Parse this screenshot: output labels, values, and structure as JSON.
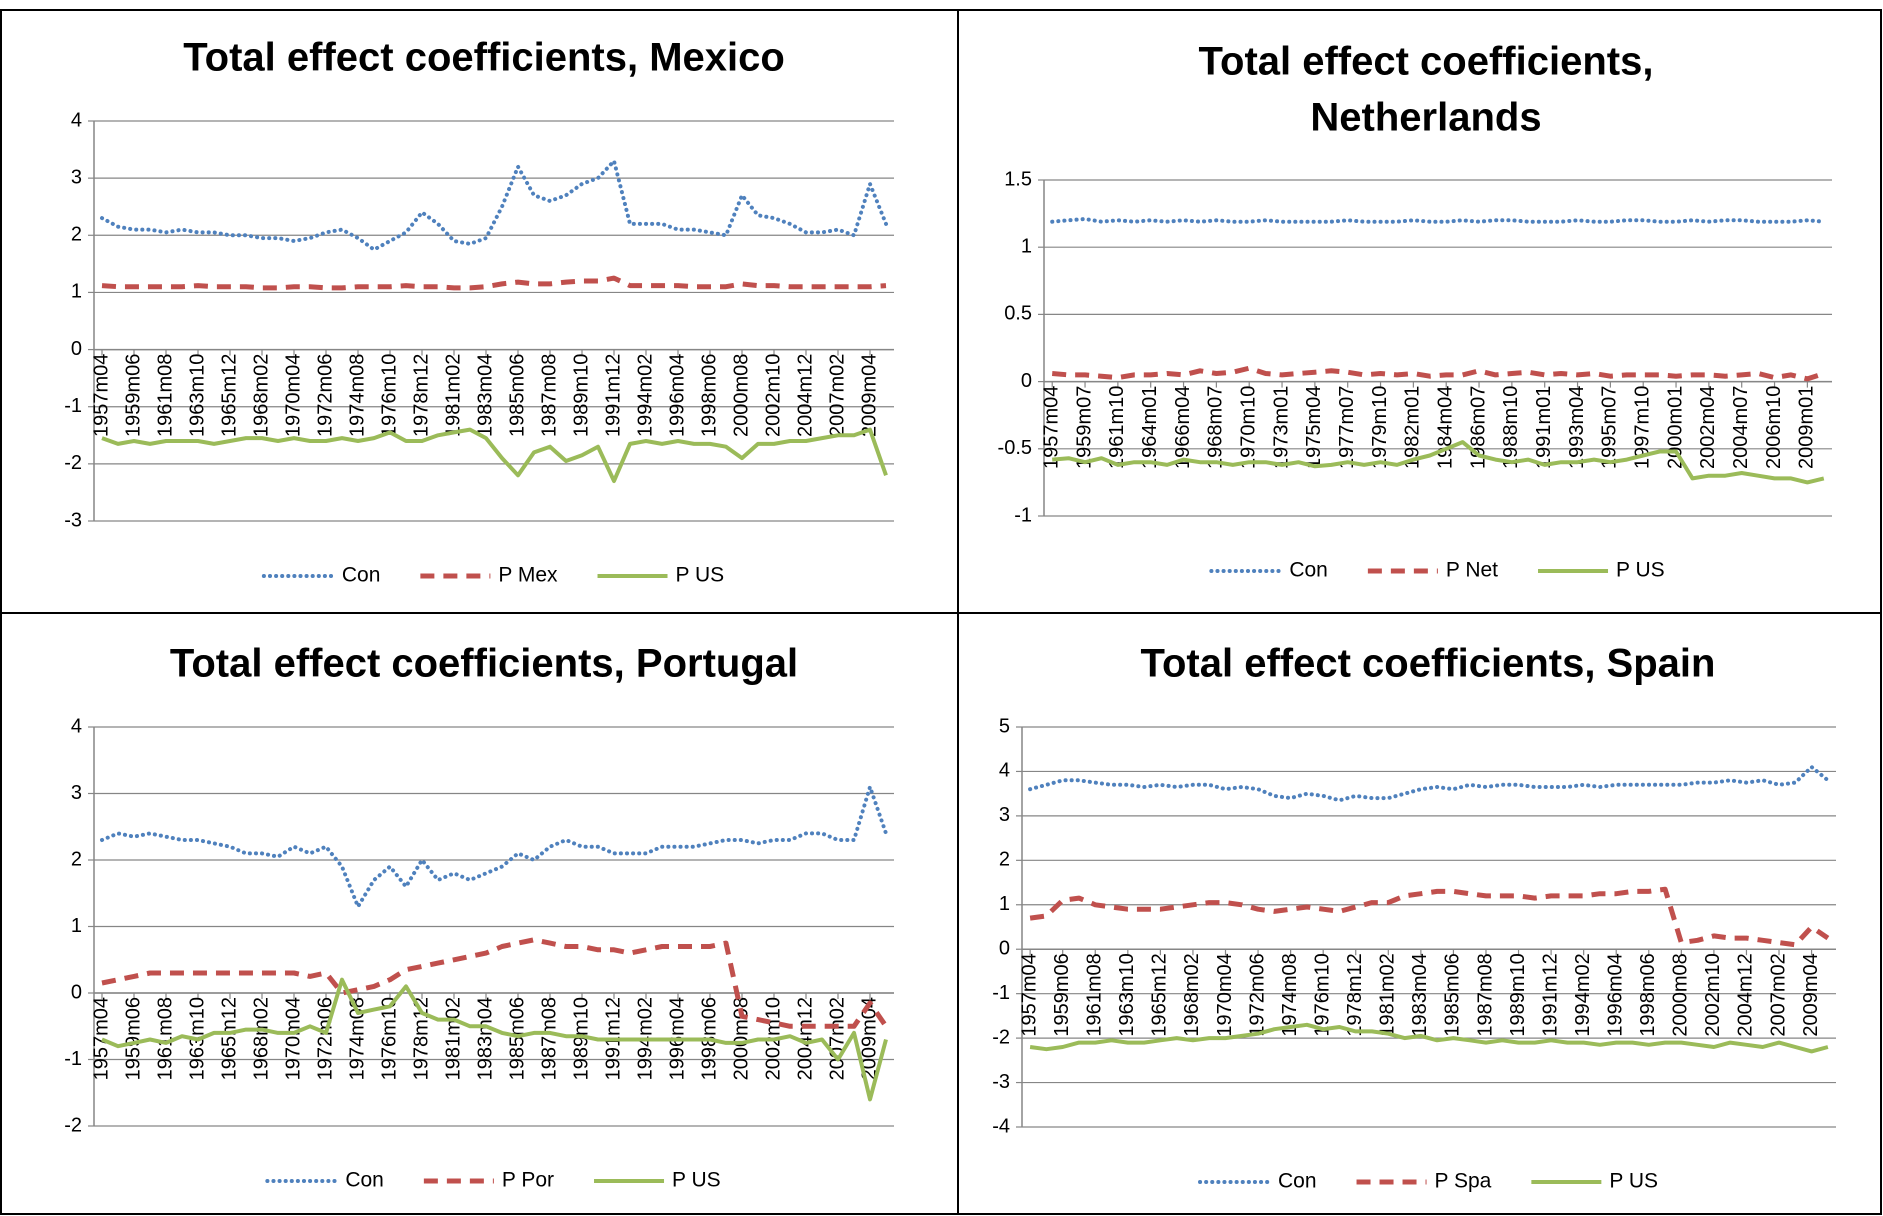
{
  "chart_data": [
    {
      "type": "line",
      "title": [
        "Total effect coefficients, Mexico"
      ],
      "categories": [
        "1957m04",
        null,
        "1959m06",
        null,
        "1961m08",
        null,
        "1963m10",
        null,
        "1965m12",
        null,
        "1968m02",
        null,
        "1970m04",
        null,
        "1972m06",
        null,
        "1974m08",
        null,
        "1976m10",
        null,
        "1978m12",
        null,
        "1981m02",
        null,
        "1983m04",
        null,
        "1985m06",
        null,
        "1987m08",
        null,
        "1989m10",
        null,
        "1991m12",
        null,
        "1994m02",
        null,
        "1996m04",
        null,
        "1998m06",
        null,
        "2000m08",
        null,
        "2002m10",
        null,
        "2004m12",
        null,
        "2007m02",
        null,
        "2009m04",
        null
      ],
      "series": [
        {
          "name": "Con",
          "color": "#4f81bd",
          "line_style": "dotted",
          "values": [
            2.3,
            2.15,
            2.1,
            2.1,
            2.05,
            2.1,
            2.05,
            2.05,
            2.0,
            2.0,
            1.95,
            1.95,
            1.9,
            1.95,
            2.05,
            2.1,
            1.95,
            1.75,
            1.9,
            2.05,
            2.4,
            2.2,
            1.9,
            1.85,
            1.95,
            2.5,
            3.2,
            2.7,
            2.6,
            2.7,
            2.9,
            3.0,
            3.3,
            2.2,
            2.2,
            2.2,
            2.1,
            2.1,
            2.05,
            2.0,
            2.7,
            2.35,
            2.3,
            2.2,
            2.05,
            2.05,
            2.1,
            2.0,
            2.9,
            2.2
          ]
        },
        {
          "name": "P Mex",
          "color": "#c0504d",
          "line_style": "dashed",
          "values": [
            1.12,
            1.1,
            1.1,
            1.1,
            1.1,
            1.1,
            1.12,
            1.1,
            1.1,
            1.1,
            1.08,
            1.08,
            1.1,
            1.1,
            1.08,
            1.08,
            1.1,
            1.1,
            1.1,
            1.12,
            1.1,
            1.1,
            1.08,
            1.08,
            1.1,
            1.15,
            1.18,
            1.15,
            1.15,
            1.18,
            1.2,
            1.2,
            1.25,
            1.12,
            1.12,
            1.12,
            1.12,
            1.1,
            1.1,
            1.1,
            1.15,
            1.12,
            1.12,
            1.1,
            1.1,
            1.1,
            1.1,
            1.1,
            1.1,
            1.12
          ]
        },
        {
          "name": "P US",
          "color": "#9bbb59",
          "line_style": "solid",
          "values": [
            -1.55,
            -1.65,
            -1.6,
            -1.65,
            -1.6,
            -1.6,
            -1.6,
            -1.65,
            -1.6,
            -1.55,
            -1.55,
            -1.6,
            -1.55,
            -1.6,
            -1.6,
            -1.55,
            -1.6,
            -1.55,
            -1.45,
            -1.6,
            -1.6,
            -1.5,
            -1.45,
            -1.4,
            -1.55,
            -1.9,
            -2.2,
            -1.8,
            -1.7,
            -1.95,
            -1.85,
            -1.7,
            -2.3,
            -1.65,
            -1.6,
            -1.65,
            -1.6,
            -1.65,
            -1.65,
            -1.7,
            -1.9,
            -1.65,
            -1.65,
            -1.6,
            -1.6,
            -1.55,
            -1.5,
            -1.5,
            -1.4,
            -2.2
          ]
        }
      ],
      "ylim": [
        -3,
        4
      ],
      "yticks": [
        -3,
        -2,
        -1,
        0,
        1,
        2,
        3,
        4
      ],
      "grid": true,
      "legend": "bottom"
    },
    {
      "type": "line",
      "title": [
        "Total effect coefficients,",
        "Netherlands"
      ],
      "categories": [
        "1957m04",
        null,
        "1959m07",
        null,
        "1961m10",
        null,
        "1964m01",
        null,
        "1966m04",
        null,
        "1968m07",
        null,
        "1970m10",
        null,
        "1973m01",
        null,
        "1975m04",
        null,
        "1977m07",
        null,
        "1979m10",
        null,
        "1982m01",
        null,
        "1984m04",
        null,
        "1986m07",
        null,
        "1988m10",
        null,
        "1991m01",
        null,
        "1993m04",
        null,
        "1995m07",
        null,
        "1997m10",
        null,
        "2000m01",
        null,
        "2002m04",
        null,
        "2004m07",
        null,
        "2006m10",
        null,
        "2009m01",
        null
      ],
      "series": [
        {
          "name": "Con",
          "color": "#4f81bd",
          "line_style": "dotted",
          "values": [
            1.19,
            1.2,
            1.21,
            1.19,
            1.2,
            1.19,
            1.2,
            1.19,
            1.2,
            1.19,
            1.2,
            1.19,
            1.19,
            1.2,
            1.19,
            1.19,
            1.19,
            1.19,
            1.2,
            1.19,
            1.19,
            1.19,
            1.2,
            1.19,
            1.19,
            1.2,
            1.19,
            1.2,
            1.2,
            1.19,
            1.19,
            1.19,
            1.2,
            1.19,
            1.19,
            1.2,
            1.2,
            1.19,
            1.19,
            1.2,
            1.19,
            1.2,
            1.2,
            1.19,
            1.19,
            1.19,
            1.2,
            1.19
          ]
        },
        {
          "name": "P Net",
          "color": "#c0504d",
          "line_style": "dashed",
          "values": [
            0.06,
            0.05,
            0.05,
            0.04,
            0.03,
            0.05,
            0.05,
            0.06,
            0.05,
            0.08,
            0.06,
            0.07,
            0.1,
            0.06,
            0.05,
            0.06,
            0.07,
            0.08,
            0.07,
            0.05,
            0.06,
            0.05,
            0.06,
            0.04,
            0.05,
            0.05,
            0.08,
            0.05,
            0.06,
            0.07,
            0.05,
            0.06,
            0.05,
            0.06,
            0.04,
            0.05,
            0.05,
            0.05,
            0.04,
            0.05,
            0.05,
            0.04,
            0.05,
            0.06,
            0.03,
            0.05,
            0.02,
            0.06
          ]
        },
        {
          "name": "P US",
          "color": "#9bbb59",
          "line_style": "solid",
          "values": [
            -0.58,
            -0.57,
            -0.6,
            -0.57,
            -0.62,
            -0.6,
            -0.6,
            -0.62,
            -0.58,
            -0.6,
            -0.6,
            -0.62,
            -0.6,
            -0.6,
            -0.62,
            -0.6,
            -0.63,
            -0.62,
            -0.6,
            -0.62,
            -0.6,
            -0.62,
            -0.58,
            -0.55,
            -0.5,
            -0.45,
            -0.55,
            -0.58,
            -0.6,
            -0.58,
            -0.62,
            -0.6,
            -0.6,
            -0.58,
            -0.6,
            -0.58,
            -0.55,
            -0.52,
            -0.52,
            -0.72,
            -0.7,
            -0.7,
            -0.68,
            -0.7,
            -0.72,
            -0.72,
            -0.75,
            -0.72
          ]
        }
      ],
      "ylim": [
        -1,
        1.5
      ],
      "yticks": [
        -1,
        -0.5,
        0,
        0.5,
        1,
        1.5
      ],
      "grid": true,
      "legend": "bottom"
    },
    {
      "type": "line",
      "title": [
        "Total effect coefficients, Portugal"
      ],
      "categories": [
        "1957m04",
        null,
        "1959m06",
        null,
        "1961m08",
        null,
        "1963m10",
        null,
        "1965m12",
        null,
        "1968m02",
        null,
        "1970m04",
        null,
        "1972m06",
        null,
        "1974m08",
        null,
        "1976m10",
        null,
        "1978m12",
        null,
        "1981m02",
        null,
        "1983m04",
        null,
        "1985m06",
        null,
        "1987m08",
        null,
        "1989m10",
        null,
        "1991m12",
        null,
        "1994m02",
        null,
        "1996m04",
        null,
        "1998m06",
        null,
        "2000m08",
        null,
        "2002m10",
        null,
        "2004m12",
        null,
        "2007m02",
        null,
        "2009m04",
        null
      ],
      "series": [
        {
          "name": "Con",
          "color": "#4f81bd",
          "line_style": "dotted",
          "values": [
            2.3,
            2.4,
            2.35,
            2.4,
            2.35,
            2.3,
            2.3,
            2.25,
            2.2,
            2.1,
            2.1,
            2.05,
            2.2,
            2.1,
            2.2,
            1.9,
            1.3,
            1.7,
            1.9,
            1.6,
            2.0,
            1.7,
            1.8,
            1.7,
            1.8,
            1.9,
            2.1,
            2.0,
            2.2,
            2.3,
            2.2,
            2.2,
            2.1,
            2.1,
            2.1,
            2.2,
            2.2,
            2.2,
            2.25,
            2.3,
            2.3,
            2.25,
            2.3,
            2.3,
            2.4,
            2.4,
            2.3,
            2.3,
            3.1,
            2.4
          ]
        },
        {
          "name": "P Por",
          "color": "#c0504d",
          "line_style": "dashed",
          "values": [
            0.15,
            0.2,
            0.25,
            0.3,
            0.3,
            0.3,
            0.3,
            0.3,
            0.3,
            0.3,
            0.3,
            0.3,
            0.3,
            0.25,
            0.3,
            0.0,
            0.05,
            0.1,
            0.2,
            0.35,
            0.4,
            0.45,
            0.5,
            0.55,
            0.6,
            0.7,
            0.75,
            0.8,
            0.75,
            0.7,
            0.7,
            0.65,
            0.65,
            0.6,
            0.65,
            0.7,
            0.7,
            0.7,
            0.7,
            0.75,
            -0.35,
            -0.4,
            -0.45,
            -0.5,
            -0.5,
            -0.5,
            -0.5,
            -0.5,
            -0.15,
            -0.5
          ]
        },
        {
          "name": "P US",
          "color": "#9bbb59",
          "line_style": "solid",
          "values": [
            -0.7,
            -0.8,
            -0.75,
            -0.7,
            -0.75,
            -0.65,
            -0.7,
            -0.6,
            -0.6,
            -0.55,
            -0.55,
            -0.6,
            -0.6,
            -0.5,
            -0.6,
            0.2,
            -0.3,
            -0.25,
            -0.2,
            0.1,
            -0.3,
            -0.4,
            -0.4,
            -0.5,
            -0.5,
            -0.6,
            -0.65,
            -0.6,
            -0.6,
            -0.65,
            -0.65,
            -0.7,
            -0.7,
            -0.7,
            -0.7,
            -0.7,
            -0.7,
            -0.7,
            -0.7,
            -0.75,
            -0.75,
            -0.7,
            -0.7,
            -0.65,
            -0.75,
            -0.7,
            -1.0,
            -0.6,
            -1.6,
            -0.7
          ]
        }
      ],
      "ylim": [
        -2,
        4
      ],
      "yticks": [
        -2,
        -1,
        0,
        1,
        2,
        3,
        4
      ],
      "grid": true,
      "legend": "bottom"
    },
    {
      "type": "line",
      "title": [
        "Total effect coefficients, Spain"
      ],
      "categories": [
        "1957m04",
        null,
        "1959m06",
        null,
        "1961m08",
        null,
        "1963m10",
        null,
        "1965m12",
        null,
        "1968m02",
        null,
        "1970m04",
        null,
        "1972m06",
        null,
        "1974m08",
        null,
        "1976m10",
        null,
        "1978m12",
        null,
        "1981m02",
        null,
        "1983m04",
        null,
        "1985m06",
        null,
        "1987m08",
        null,
        "1989m10",
        null,
        "1991m12",
        null,
        "1994m02",
        null,
        "1996m04",
        null,
        "1998m06",
        null,
        "2000m08",
        null,
        "2002m10",
        null,
        "2004m12",
        null,
        "2007m02",
        null,
        "2009m04",
        null
      ],
      "series": [
        {
          "name": "Con",
          "color": "#4f81bd",
          "line_style": "dotted",
          "values": [
            3.6,
            3.7,
            3.8,
            3.8,
            3.75,
            3.7,
            3.7,
            3.65,
            3.7,
            3.65,
            3.7,
            3.7,
            3.6,
            3.65,
            3.6,
            3.45,
            3.4,
            3.5,
            3.45,
            3.35,
            3.45,
            3.4,
            3.4,
            3.5,
            3.6,
            3.65,
            3.6,
            3.7,
            3.65,
            3.7,
            3.7,
            3.65,
            3.65,
            3.65,
            3.7,
            3.65,
            3.7,
            3.7,
            3.7,
            3.7,
            3.7,
            3.75,
            3.75,
            3.8,
            3.75,
            3.8,
            3.7,
            3.75,
            4.1,
            3.8
          ]
        },
        {
          "name": "P Spa",
          "color": "#c0504d",
          "line_style": "dashed",
          "values": [
            0.7,
            0.75,
            1.1,
            1.15,
            1.0,
            0.95,
            0.9,
            0.9,
            0.9,
            0.95,
            1.0,
            1.05,
            1.05,
            1.0,
            0.9,
            0.85,
            0.9,
            0.95,
            0.9,
            0.85,
            0.95,
            1.05,
            1.05,
            1.2,
            1.25,
            1.3,
            1.3,
            1.25,
            1.2,
            1.2,
            1.2,
            1.15,
            1.2,
            1.2,
            1.2,
            1.25,
            1.25,
            1.3,
            1.3,
            1.35,
            0.15,
            0.2,
            0.3,
            0.25,
            0.25,
            0.2,
            0.15,
            0.1,
            0.5,
            0.25
          ]
        },
        {
          "name": "P US",
          "color": "#9bbb59",
          "line_style": "solid",
          "values": [
            -2.2,
            -2.25,
            -2.2,
            -2.1,
            -2.1,
            -2.05,
            -2.1,
            -2.1,
            -2.05,
            -2.0,
            -2.05,
            -2.0,
            -2.0,
            -1.95,
            -1.9,
            -1.8,
            -1.75,
            -1.7,
            -1.8,
            -1.75,
            -1.85,
            -1.85,
            -1.9,
            -2.0,
            -1.95,
            -2.05,
            -2.0,
            -2.05,
            -2.1,
            -2.05,
            -2.1,
            -2.1,
            -2.05,
            -2.1,
            -2.1,
            -2.15,
            -2.1,
            -2.1,
            -2.15,
            -2.1,
            -2.1,
            -2.15,
            -2.2,
            -2.1,
            -2.15,
            -2.2,
            -2.1,
            -2.2,
            -2.3,
            -2.2
          ]
        }
      ],
      "ylim": [
        -4,
        5
      ],
      "yticks": [
        -4,
        -3,
        -2,
        -1,
        0,
        1,
        2,
        3,
        4,
        5
      ],
      "grid": true,
      "legend": "bottom"
    }
  ]
}
